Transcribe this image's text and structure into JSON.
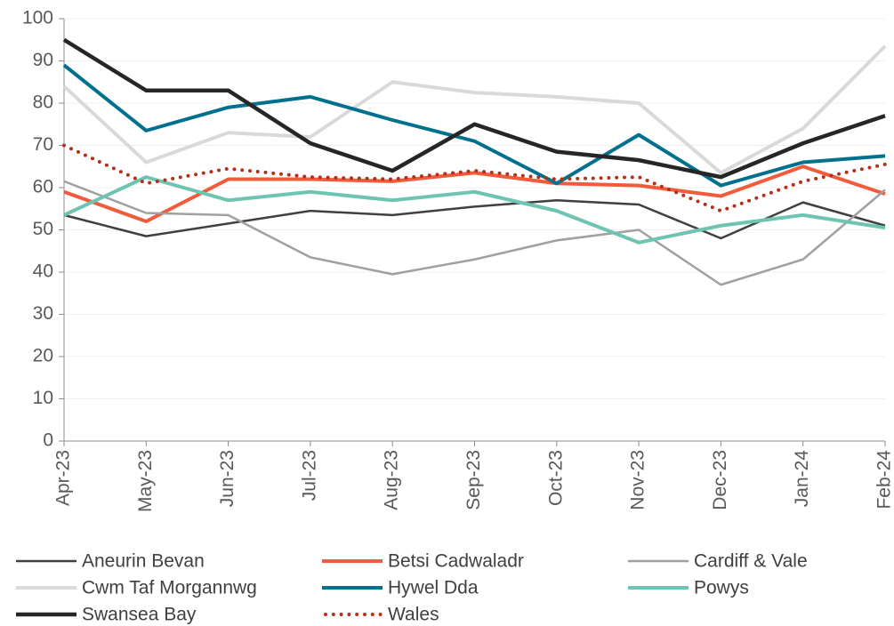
{
  "chart_data": {
    "type": "line",
    "categories": [
      "Apr-23",
      "May-23",
      "Jun-23",
      "Jul-23",
      "Aug-23",
      "Sep-23",
      "Oct-23",
      "Nov-23",
      "Dec-23",
      "Jan-24",
      "Feb-24"
    ],
    "series": [
      {
        "name": "Aneurin Bevan",
        "color": "#404040",
        "width": 2.5,
        "values": [
          53.5,
          48.5,
          51.5,
          54.5,
          53.5,
          55.5,
          57,
          56,
          48,
          56.5,
          51
        ]
      },
      {
        "name": "Betsi Cadwaladr",
        "color": "#f15a3a",
        "width": 4,
        "values": [
          59,
          52,
          62,
          62,
          61.5,
          63.5,
          61,
          60.5,
          58,
          65,
          58.5
        ]
      },
      {
        "name": "Cardiff & Vale",
        "color": "#a0a0a0",
        "width": 2.5,
        "values": [
          61.5,
          54,
          53.5,
          43.5,
          39.5,
          43,
          47.5,
          50,
          37,
          43,
          59.5
        ]
      },
      {
        "name": "Cwm Taf Morgannwg",
        "color": "#d9d9d9",
        "width": 4,
        "values": [
          84,
          66,
          73,
          72,
          85,
          82.5,
          81.5,
          80,
          63.5,
          74,
          93.5
        ]
      },
      {
        "name": "Hywel Dda",
        "color": "#00708f",
        "width": 4,
        "values": [
          89,
          73.5,
          79,
          81.5,
          76,
          71,
          61,
          72.5,
          60.5,
          66,
          67.5
        ]
      },
      {
        "name": "Powys",
        "color": "#6ec4b2",
        "width": 4,
        "values": [
          53.5,
          62.5,
          57,
          59,
          57,
          59,
          54.5,
          47,
          51,
          53.5,
          50.5
        ]
      },
      {
        "name": "Swansea Bay",
        "color": "#262626",
        "width": 4.5,
        "values": [
          95,
          83,
          83,
          70.5,
          64,
          75,
          68.5,
          66.5,
          62.5,
          70.5,
          77
        ]
      },
      {
        "name": "Wales",
        "color": "#b5301a",
        "width": 4,
        "dash": "dotted",
        "values": [
          70,
          61,
          64.5,
          62.5,
          62,
          64,
          62,
          62.5,
          54.5,
          61.5,
          65.5
        ]
      }
    ],
    "ylim": [
      0,
      100
    ],
    "yticks": [
      0,
      10,
      20,
      30,
      40,
      50,
      60,
      70,
      80,
      90,
      100
    ],
    "grid": true,
    "legend": "bottom"
  }
}
